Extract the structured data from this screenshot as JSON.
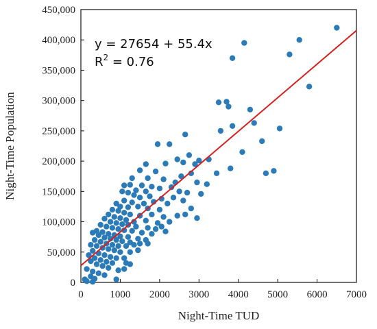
{
  "chart_data": {
    "type": "scatter",
    "xlabel": "Night-Time TUD",
    "ylabel": "Night-Time Population",
    "xlim": [
      0,
      7000
    ],
    "ylim": [
      0,
      450000
    ],
    "x_ticks": [
      0,
      1000,
      2000,
      3000,
      4000,
      5000,
      6000,
      7000
    ],
    "x_tick_labels": [
      "0",
      "1000",
      "2000",
      "3000",
      "4000",
      "5000",
      "6000",
      "7000"
    ],
    "y_ticks": [
      0,
      50000,
      100000,
      150000,
      200000,
      250000,
      300000,
      350000,
      400000,
      450000
    ],
    "y_tick_labels": [
      "0",
      "50,000",
      "100,000",
      "150,000",
      "200,000",
      "250,000",
      "300,000",
      "350,000",
      "400,000",
      "450,000"
    ],
    "annotation": {
      "equation": "y = 27654 + 55.4x",
      "r2_label": "R",
      "r2_exp": "2",
      "r2_value": " = 0.76"
    },
    "trendline": {
      "intercept": 27654,
      "slope": 55.4,
      "x_range": [
        0,
        7000
      ],
      "color": "#d62020"
    },
    "point_color": "#2b7bb9",
    "points": [
      [
        6500,
        420000
      ],
      [
        5550,
        400000
      ],
      [
        4150,
        395000
      ],
      [
        5300,
        376000
      ],
      [
        3850,
        370000
      ],
      [
        5800,
        323000
      ],
      [
        3500,
        297000
      ],
      [
        3700,
        298000
      ],
      [
        3750,
        290000
      ],
      [
        4300,
        285000
      ],
      [
        4400,
        263000
      ],
      [
        3850,
        258000
      ],
      [
        3550,
        250000
      ],
      [
        5050,
        254000
      ],
      [
        2650,
        244000
      ],
      [
        4600,
        233000
      ],
      [
        1950,
        228000
      ],
      [
        2250,
        228000
      ],
      [
        4100,
        215000
      ],
      [
        2750,
        210000
      ],
      [
        2450,
        203000
      ],
      [
        3000,
        201000
      ],
      [
        3250,
        203000
      ],
      [
        1650,
        195000
      ],
      [
        2150,
        196000
      ],
      [
        2600,
        198000
      ],
      [
        2900,
        195000
      ],
      [
        3800,
        188000
      ],
      [
        3450,
        180000
      ],
      [
        4700,
        180000
      ],
      [
        4900,
        184000
      ],
      [
        1900,
        183000
      ],
      [
        2800,
        180000
      ],
      [
        1500,
        185000
      ],
      [
        1300,
        172000
      ],
      [
        2550,
        175000
      ],
      [
        1700,
        172000
      ],
      [
        2100,
        170000
      ],
      [
        2400,
        165000
      ],
      [
        2950,
        165000
      ],
      [
        3200,
        162000
      ],
      [
        1100,
        160000
      ],
      [
        1250,
        161000
      ],
      [
        1550,
        160000
      ],
      [
        1800,
        158000
      ],
      [
        2000,
        155000
      ],
      [
        2300,
        157000
      ],
      [
        1400,
        152000
      ],
      [
        1650,
        150000
      ],
      [
        2500,
        150000
      ],
      [
        2700,
        148000
      ],
      [
        3050,
        146000
      ],
      [
        1050,
        150000
      ],
      [
        1200,
        148000
      ],
      [
        1350,
        144000
      ],
      [
        1500,
        140000
      ],
      [
        1750,
        142000
      ],
      [
        2050,
        138000
      ],
      [
        2350,
        140000
      ],
      [
        2600,
        135000
      ],
      [
        1100,
        135000
      ],
      [
        1300,
        132000
      ],
      [
        1600,
        130000
      ],
      [
        1850,
        133000
      ],
      [
        2200,
        130000
      ],
      [
        900,
        130000
      ],
      [
        1000,
        125000
      ],
      [
        1200,
        124000
      ],
      [
        1450,
        125000
      ],
      [
        1700,
        122000
      ],
      [
        2000,
        120000
      ],
      [
        2800,
        122000
      ],
      [
        800,
        120000
      ],
      [
        950,
        118000
      ],
      [
        1100,
        115000
      ],
      [
        1250,
        112000
      ],
      [
        1500,
        110000
      ],
      [
        1800,
        112000
      ],
      [
        2100,
        108000
      ],
      [
        2450,
        110000
      ],
      [
        2650,
        112000
      ],
      [
        2950,
        106000
      ],
      [
        700,
        112000
      ],
      [
        850,
        108000
      ],
      [
        1000,
        106000
      ],
      [
        1150,
        103000
      ],
      [
        1350,
        100000
      ],
      [
        1650,
        102000
      ],
      [
        1950,
        98000
      ],
      [
        2250,
        100000
      ],
      [
        600,
        105000
      ],
      [
        750,
        100000
      ],
      [
        900,
        98000
      ],
      [
        1050,
        96000
      ],
      [
        1200,
        95000
      ],
      [
        1400,
        92000
      ],
      [
        1700,
        90000
      ],
      [
        1900,
        88000
      ],
      [
        2050,
        92000
      ],
      [
        500,
        95000
      ],
      [
        650,
        92000
      ],
      [
        800,
        90000
      ],
      [
        950,
        88000
      ],
      [
        1100,
        86000
      ],
      [
        1300,
        85000
      ],
      [
        1550,
        82000
      ],
      [
        1800,
        80000
      ],
      [
        2150,
        84000
      ],
      [
        400,
        85000
      ],
      [
        550,
        83000
      ],
      [
        700,
        80000
      ],
      [
        850,
        78000
      ],
      [
        1000,
        76000
      ],
      [
        1200,
        75000
      ],
      [
        1450,
        72000
      ],
      [
        1650,
        70000
      ],
      [
        300,
        82000
      ],
      [
        450,
        78000
      ],
      [
        600,
        74000
      ],
      [
        750,
        72000
      ],
      [
        900,
        70000
      ],
      [
        1050,
        68000
      ],
      [
        1250,
        66000
      ],
      [
        1500,
        64000
      ],
      [
        350,
        70000
      ],
      [
        500,
        67000
      ],
      [
        650,
        64000
      ],
      [
        800,
        62000
      ],
      [
        950,
        60000
      ],
      [
        1150,
        60000
      ],
      [
        1350,
        62000
      ],
      [
        1700,
        64000
      ],
      [
        250,
        62000
      ],
      [
        400,
        60000
      ],
      [
        550,
        57000
      ],
      [
        700,
        55000
      ],
      [
        850,
        53000
      ],
      [
        1000,
        50000
      ],
      [
        1250,
        50000
      ],
      [
        1450,
        53000
      ],
      [
        300,
        52000
      ],
      [
        450,
        48000
      ],
      [
        600,
        45000
      ],
      [
        750,
        42000
      ],
      [
        900,
        40000
      ],
      [
        1100,
        40000
      ],
      [
        200,
        45000
      ],
      [
        350,
        40000
      ],
      [
        500,
        37000
      ],
      [
        650,
        34000
      ],
      [
        800,
        32000
      ],
      [
        1150,
        32000
      ],
      [
        1250,
        30000
      ],
      [
        250,
        35000
      ],
      [
        400,
        30000
      ],
      [
        550,
        27000
      ],
      [
        700,
        24000
      ],
      [
        950,
        20000
      ],
      [
        1100,
        22000
      ],
      [
        150,
        22000
      ],
      [
        300,
        18000
      ],
      [
        450,
        15000
      ],
      [
        600,
        12000
      ],
      [
        250,
        10000
      ],
      [
        350,
        6000
      ],
      [
        100,
        5000
      ],
      [
        150,
        2000
      ],
      [
        300,
        1000
      ],
      [
        900,
        5000
      ]
    ]
  }
}
